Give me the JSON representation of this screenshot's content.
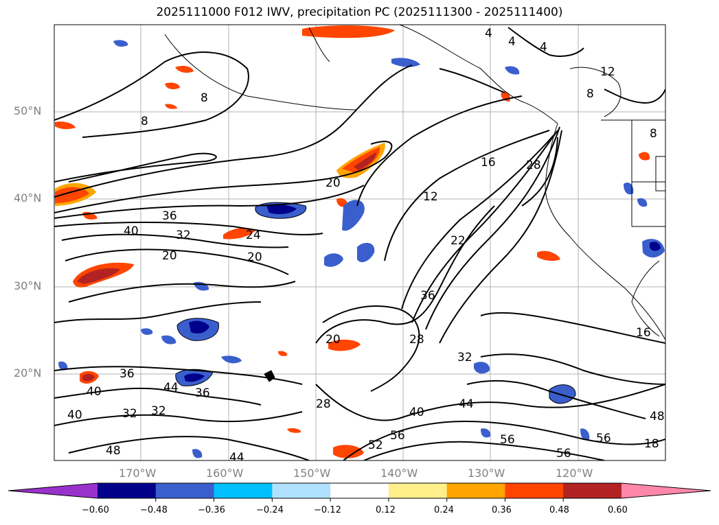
{
  "title": "2025111000 F012 IWV, precipitation PC (2025111300 - 2025111400)",
  "map": {
    "lat_labels": [
      "50°N",
      "40°N",
      "30°N",
      "20°N"
    ],
    "lon_labels": [
      "170°W",
      "160°W",
      "150°W",
      "140°W",
      "130°W",
      "120°W"
    ],
    "contour_labels": [
      "8",
      "8",
      "4",
      "4",
      "4",
      "12",
      "8",
      "8",
      "16",
      "28",
      "12",
      "20",
      "36",
      "40",
      "32",
      "24",
      "20",
      "20",
      "36",
      "22",
      "28",
      "20",
      "16",
      "32",
      "36",
      "40",
      "44",
      "36",
      "40",
      "32",
      "32",
      "28",
      "40",
      "44",
      "56",
      "56",
      "56",
      "52",
      "56",
      "48",
      "48",
      "44",
      "18"
    ]
  },
  "colorbar": {
    "ticks": [
      "−0.60",
      "−0.48",
      "−0.36",
      "−0.24",
      "−0.12",
      "0.12",
      "0.24",
      "0.36",
      "0.48",
      "0.60"
    ],
    "colors": [
      "#9932cc",
      "#00008b",
      "#3a5fcd",
      "#00bfff",
      "#b0e2ff",
      "#ffffff",
      "#fff08c",
      "#ffa500",
      "#ff4500",
      "#b22222",
      "#ff88aa"
    ]
  }
}
